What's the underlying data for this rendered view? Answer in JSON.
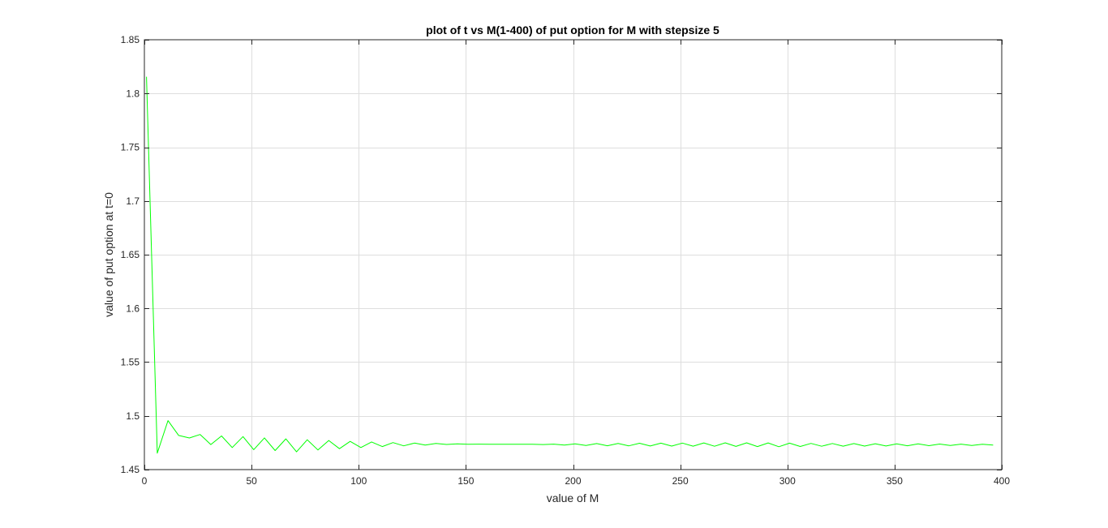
{
  "chart_data": {
    "type": "line",
    "title": "plot of t vs M(1-400) of put option for M with stepsize 5",
    "xlabel": "value of M",
    "ylabel": "value of put option at t=0",
    "xlim": [
      0,
      400
    ],
    "ylim": [
      1.45,
      1.85
    ],
    "xticks": [
      0,
      50,
      100,
      150,
      200,
      250,
      300,
      350,
      400
    ],
    "yticks": [
      1.45,
      1.5,
      1.55,
      1.6,
      1.65,
      1.7,
      1.75,
      1.8,
      1.85
    ],
    "xtick_labels": [
      "0",
      "50",
      "100",
      "150",
      "200",
      "250",
      "300",
      "350",
      "400"
    ],
    "ytick_labels": [
      "1.45",
      "1.5",
      "1.55",
      "1.6",
      "1.65",
      "1.7",
      "1.75",
      "1.8",
      "1.85"
    ],
    "grid": true,
    "series": [
      {
        "color": "#00ff00",
        "x": [
          1,
          6,
          11,
          16,
          21,
          26,
          31,
          36,
          41,
          46,
          51,
          56,
          61,
          66,
          71,
          76,
          81,
          86,
          91,
          96,
          101,
          106,
          111,
          116,
          121,
          126,
          131,
          136,
          141,
          146,
          151,
          156,
          161,
          166,
          171,
          176,
          181,
          186,
          191,
          196,
          201,
          206,
          211,
          216,
          221,
          226,
          231,
          236,
          241,
          246,
          251,
          256,
          261,
          266,
          271,
          276,
          281,
          286,
          291,
          296,
          301,
          306,
          311,
          316,
          321,
          326,
          331,
          336,
          341,
          346,
          351,
          356,
          361,
          366,
          371,
          376,
          381,
          386,
          391,
          396
        ],
        "y": [
          1.8156,
          1.4653,
          1.4956,
          1.4818,
          1.4794,
          1.4827,
          1.4733,
          1.4813,
          1.4705,
          1.4807,
          1.4686,
          1.4795,
          1.4677,
          1.4786,
          1.4665,
          1.4778,
          1.4683,
          1.4771,
          1.4695,
          1.4763,
          1.4705,
          1.4757,
          1.4714,
          1.4751,
          1.4721,
          1.4747,
          1.4728,
          1.4743,
          1.4734,
          1.4739,
          1.4736,
          1.4737,
          1.4736,
          1.4736,
          1.4736,
          1.4736,
          1.4736,
          1.4733,
          1.4737,
          1.4729,
          1.474,
          1.4725,
          1.4742,
          1.4722,
          1.4743,
          1.4721,
          1.4745,
          1.472,
          1.4746,
          1.4719,
          1.4747,
          1.4718,
          1.4748,
          1.4717,
          1.4749,
          1.4716,
          1.4749,
          1.4714,
          1.4748,
          1.4713,
          1.4746,
          1.4715,
          1.4744,
          1.4717,
          1.4743,
          1.4718,
          1.4742,
          1.4719,
          1.4741,
          1.472,
          1.474,
          1.4722,
          1.4739,
          1.4723,
          1.4738,
          1.4724,
          1.4737,
          1.4725,
          1.4736,
          1.4728
        ]
      }
    ]
  }
}
